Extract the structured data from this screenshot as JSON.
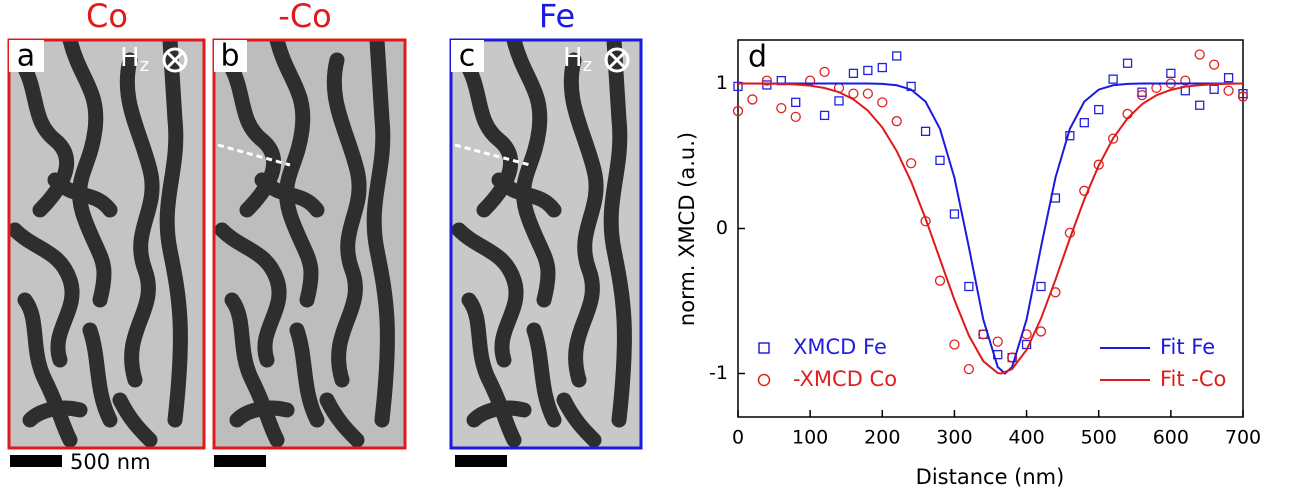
{
  "panels": [
    {
      "title": "Co",
      "label": "a",
      "field": "H",
      "field_sub": "z",
      "scale": "500 nm"
    },
    {
      "title": "-Co",
      "label": "b"
    },
    {
      "title": "Fe",
      "label": "c",
      "field": "H",
      "field_sub": "z"
    }
  ],
  "chart_data": {
    "type": "scatter",
    "label": "d",
    "xlabel": "Distance (nm)",
    "ylabel": "norm. XMCD (a.u.)",
    "xlim": [
      0,
      700
    ],
    "xticks": [
      0,
      100,
      200,
      300,
      400,
      500,
      600,
      700
    ],
    "ylim": [
      -1.3,
      1.3
    ],
    "yticks": [
      -1,
      0,
      1
    ],
    "series": [
      {
        "name": "XMCD Fe",
        "color": "#2222dd",
        "marker": "square",
        "x": [
          0,
          40,
          60,
          80,
          120,
          140,
          160,
          180,
          200,
          220,
          240,
          260,
          280,
          300,
          320,
          340,
          360,
          380,
          400,
          420,
          440,
          460,
          480,
          500,
          520,
          540,
          560,
          600,
          620,
          640,
          660,
          680,
          700
        ],
        "values": [
          0.98,
          0.99,
          1.02,
          0.87,
          0.78,
          0.88,
          1.07,
          1.09,
          1.11,
          1.19,
          0.98,
          0.67,
          0.47,
          0.1,
          -0.4,
          -0.73,
          -0.87,
          -0.89,
          -0.8,
          -0.4,
          0.21,
          0.64,
          0.73,
          0.82,
          1.03,
          1.14,
          0.94,
          1.07,
          0.95,
          0.85,
          0.96,
          1.04,
          0.93
        ]
      },
      {
        "name": "-XMCD Co",
        "color": "#e02020",
        "marker": "circle",
        "x": [
          0,
          20,
          40,
          60,
          80,
          100,
          120,
          140,
          160,
          180,
          200,
          220,
          240,
          260,
          280,
          300,
          320,
          340,
          360,
          380,
          400,
          420,
          440,
          460,
          480,
          500,
          520,
          540,
          560,
          580,
          600,
          620,
          640,
          660,
          680,
          700
        ],
        "values": [
          0.81,
          0.89,
          1.02,
          0.83,
          0.77,
          1.02,
          1.08,
          0.97,
          0.93,
          0.93,
          0.87,
          0.74,
          0.45,
          0.05,
          -0.36,
          -0.8,
          -0.97,
          -0.73,
          -0.78,
          -0.89,
          -0.73,
          -0.71,
          -0.44,
          -0.03,
          0.26,
          0.44,
          0.62,
          0.79,
          0.92,
          0.97,
          1.0,
          1.02,
          1.2,
          1.13,
          0.95,
          0.91
        ]
      },
      {
        "name": "Fit Fe",
        "color": "#1a1ae0",
        "marker": "line",
        "x": [
          0,
          100,
          180,
          200,
          220,
          240,
          260,
          280,
          300,
          320,
          340,
          360,
          370,
          380,
          400,
          420,
          440,
          460,
          480,
          500,
          520,
          540,
          560,
          640,
          700
        ],
        "values": [
          1.0,
          1.0,
          1.0,
          0.997,
          0.988,
          0.958,
          0.875,
          0.687,
          0.35,
          -0.128,
          -0.628,
          -0.955,
          -1.0,
          -0.955,
          -0.628,
          -0.128,
          0.35,
          0.687,
          0.875,
          0.958,
          0.988,
          0.997,
          1.0,
          1.0,
          1.0
        ]
      },
      {
        "name": "Fit -Co",
        "color": "#e01a1a",
        "marker": "line",
        "x": [
          0,
          40,
          60,
          80,
          100,
          120,
          140,
          160,
          180,
          200,
          220,
          240,
          260,
          280,
          300,
          320,
          340,
          360,
          365,
          380,
          400,
          420,
          440,
          460,
          480,
          500,
          520,
          540,
          560,
          580,
          600,
          620,
          640,
          660,
          680,
          700
        ],
        "values": [
          1.0,
          0.999,
          0.997,
          0.993,
          0.985,
          0.969,
          0.94,
          0.891,
          0.813,
          0.697,
          0.534,
          0.323,
          0.068,
          -0.212,
          -0.492,
          -0.738,
          -0.915,
          -0.997,
          -1.0,
          -0.969,
          -0.837,
          -0.621,
          -0.354,
          -0.069,
          0.201,
          0.434,
          0.622,
          0.76,
          0.857,
          0.919,
          0.956,
          0.978,
          0.989,
          0.995,
          0.998,
          1.0
        ]
      }
    ]
  }
}
